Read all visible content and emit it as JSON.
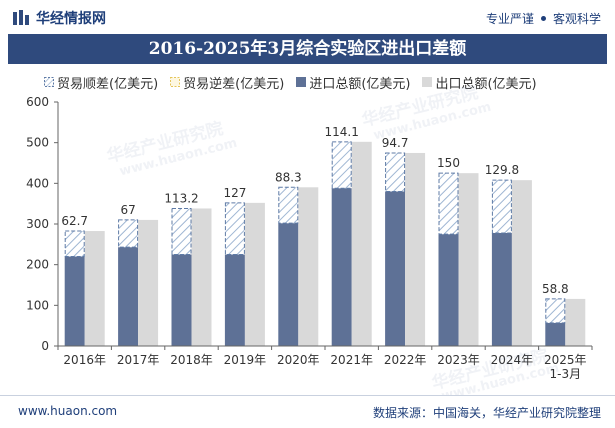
{
  "header": {
    "brand_name": "华经情报网",
    "tags": [
      "专业严谨",
      "客观科学"
    ]
  },
  "title": "2016-2025年3月综合实验区进出口差额",
  "legend": [
    {
      "label": "贸易顺差(亿美元)",
      "kind": "surplus"
    },
    {
      "label": "贸易逆差(亿美元)",
      "kind": "deficit"
    },
    {
      "label": "进口总额(亿美元)",
      "kind": "import"
    },
    {
      "label": "出口总额(亿美元)",
      "kind": "export"
    }
  ],
  "colors": {
    "title_band": "#2f4a7d",
    "import": "#5e7196",
    "export": "#d9d9d9",
    "hatch_line": "#9fb6d3",
    "hatch_border": "#5f7ba6",
    "deficit": "#f0d77a",
    "axis_text": "#333333"
  },
  "watermarks": [
    "华经产业研究院",
    "www.huaon.com"
  ],
  "chart_data": {
    "type": "bar",
    "title": "2016-2025年3月综合实验区进出口差额",
    "categories": [
      "2016年",
      "2017年",
      "2018年",
      "2019年",
      "2020年",
      "2021年",
      "2022年",
      "2023年",
      "2024年",
      "2025年\n1-3月"
    ],
    "ylim": [
      0,
      600
    ],
    "yticks": [
      0,
      100,
      200,
      300,
      400,
      500,
      600
    ],
    "grid": false,
    "legend_position": "top",
    "series": [
      {
        "name": "进口总额(亿美元)",
        "values": [
          220,
          243,
          225,
          225,
          302,
          388,
          380,
          275,
          278,
          57
        ]
      },
      {
        "name": "出口总额(亿美元)",
        "values": [
          282.7,
          310,
          338.2,
          352,
          390.3,
          502.1,
          474.7,
          425,
          407.8,
          115.8
        ]
      },
      {
        "name": "贸易顺差(亿美元)",
        "values": [
          62.7,
          67,
          113.2,
          127,
          88.3,
          114.1,
          94.7,
          150,
          129.8,
          58.8
        ]
      },
      {
        "name": "贸易逆差(亿美元)",
        "values": [
          0,
          0,
          0,
          0,
          0,
          0,
          0,
          0,
          0,
          0
        ]
      }
    ]
  },
  "footer": {
    "url": "www.huaon.com",
    "source": "数据来源：中国海关，华经产业研究院整理"
  }
}
